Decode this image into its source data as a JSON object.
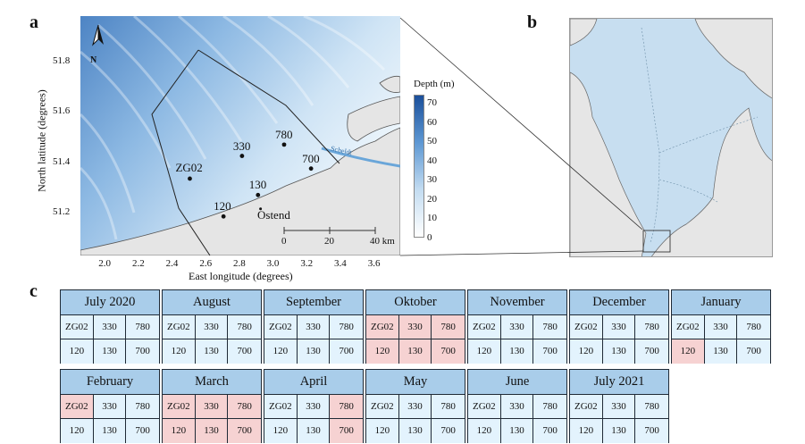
{
  "panel_labels": {
    "a": "a",
    "b": "b",
    "c": "c"
  },
  "map_a": {
    "x_axis_label": "East longitude (degrees)",
    "y_axis_label": "North latitude (degrees)",
    "x_ticks": [
      "2.0",
      "2.2",
      "2.4",
      "2.6",
      "2.8",
      "3.0",
      "3.2",
      "3.4",
      "3.6"
    ],
    "y_ticks": [
      "51.8",
      "51.6",
      "51.4",
      "51.2"
    ],
    "north_label": "N",
    "river_label": "Scheldt",
    "city_label": "Ostend",
    "stations": [
      {
        "id": "ZG02",
        "lon": 2.5,
        "lat": 51.335
      },
      {
        "id": "330",
        "lon": 2.81,
        "lat": 51.425
      },
      {
        "id": "780",
        "lon": 3.06,
        "lat": 51.47
      },
      {
        "id": "700",
        "lon": 3.22,
        "lat": 51.375
      },
      {
        "id": "130",
        "lon": 2.905,
        "lat": 51.27
      },
      {
        "id": "120",
        "lon": 2.7,
        "lat": 51.185
      }
    ],
    "scale_bar": {
      "ticks": [
        "0",
        "20",
        "40 km"
      ]
    },
    "legend": {
      "title": "Depth (m)",
      "ticks": [
        "70",
        "60",
        "50",
        "40",
        "30",
        "20",
        "10",
        "0"
      ],
      "color_deep": "#1b4f9a",
      "color_shallow": "#ffffff"
    },
    "land_color": "#e5e5e5",
    "sea_color": "#a7c9ea"
  },
  "map_b": {
    "sea_color": "#c7def0",
    "land_color": "#e6e6e6"
  },
  "calendar": {
    "highlight_color": "#f6d2d2",
    "normal_color": "#e3f3fd",
    "header_color": "#a9cdea",
    "months": [
      {
        "name": "July 2020",
        "row1": [
          "ZG02",
          "330",
          "780"
        ],
        "row2": [
          "120",
          "130",
          "700"
        ],
        "hl": []
      },
      {
        "name": "August",
        "row1": [
          "ZG02",
          "330",
          "780"
        ],
        "row2": [
          "120",
          "130",
          "700"
        ],
        "hl": []
      },
      {
        "name": "September",
        "row1": [
          "ZG02",
          "330",
          "780"
        ],
        "row2": [
          "120",
          "130",
          "700"
        ],
        "hl": []
      },
      {
        "name": "Oktober",
        "row1": [
          "ZG02",
          "330",
          "780"
        ],
        "row2": [
          "120",
          "130",
          "700"
        ],
        "hl": [
          0,
          1,
          2,
          3,
          4,
          5
        ]
      },
      {
        "name": "November",
        "row1": [
          "ZG02",
          "330",
          "780"
        ],
        "row2": [
          "120",
          "130",
          "700"
        ],
        "hl": []
      },
      {
        "name": "December",
        "row1": [
          "ZG02",
          "330",
          "780"
        ],
        "row2": [
          "120",
          "130",
          "700"
        ],
        "hl": []
      },
      {
        "name": "January",
        "row1": [
          "ZG02",
          "330",
          "780"
        ],
        "row2": [
          "120",
          "130",
          "700"
        ],
        "hl": [
          3
        ]
      },
      {
        "name": "February",
        "row1": [
          "ZG02",
          "330",
          "780"
        ],
        "row2": [
          "120",
          "130",
          "700"
        ],
        "hl": [
          0
        ]
      },
      {
        "name": "March",
        "row1": [
          "ZG02",
          "330",
          "780"
        ],
        "row2": [
          "120",
          "130",
          "700"
        ],
        "hl": [
          0,
          1,
          2,
          3,
          4,
          5
        ]
      },
      {
        "name": "April",
        "row1": [
          "ZG02",
          "330",
          "780"
        ],
        "row2": [
          "120",
          "130",
          "700"
        ],
        "hl": [
          2,
          5
        ]
      },
      {
        "name": "May",
        "row1": [
          "ZG02",
          "330",
          "780"
        ],
        "row2": [
          "120",
          "130",
          "700"
        ],
        "hl": []
      },
      {
        "name": "June",
        "row1": [
          "ZG02",
          "330",
          "780"
        ],
        "row2": [
          "120",
          "130",
          "700"
        ],
        "hl": []
      },
      {
        "name": "July 2021",
        "row1": [
          "ZG02",
          "330",
          "780"
        ],
        "row2": [
          "120",
          "130",
          "700"
        ],
        "hl": []
      }
    ]
  }
}
